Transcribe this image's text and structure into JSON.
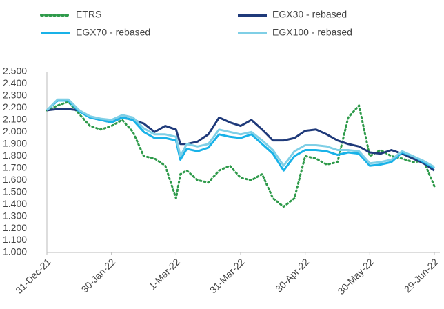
{
  "chart_data": {
    "type": "line",
    "x": [
      "2021-12-31",
      "2022-01-05",
      "2022-01-10",
      "2022-01-15",
      "2022-01-20",
      "2022-01-25",
      "2022-01-30",
      "2022-02-04",
      "2022-02-09",
      "2022-02-14",
      "2022-02-19",
      "2022-02-24",
      "2022-03-01",
      "2022-03-03",
      "2022-03-06",
      "2022-03-11",
      "2022-03-16",
      "2022-03-21",
      "2022-03-26",
      "2022-03-31",
      "2022-04-05",
      "2022-04-10",
      "2022-04-15",
      "2022-04-20",
      "2022-04-25",
      "2022-04-30",
      "2022-05-05",
      "2022-05-10",
      "2022-05-15",
      "2022-05-20",
      "2022-05-25",
      "2022-05-30",
      "2022-06-04",
      "2022-06-09",
      "2022-06-14",
      "2022-06-19",
      "2022-06-24",
      "2022-06-29"
    ],
    "series": [
      {
        "name": "ETRS",
        "color": "#2e9a4a",
        "style": "dotted",
        "values": [
          2.18,
          2.22,
          2.25,
          2.15,
          2.05,
          2.02,
          2.05,
          2.1,
          2.0,
          1.8,
          1.78,
          1.72,
          1.45,
          1.65,
          1.68,
          1.6,
          1.58,
          1.68,
          1.72,
          1.62,
          1.6,
          1.65,
          1.45,
          1.38,
          1.45,
          1.8,
          1.78,
          1.73,
          1.75,
          2.12,
          2.22,
          1.8,
          1.85,
          1.8,
          1.78,
          1.75,
          1.76,
          1.55
        ]
      },
      {
        "name": "EGX30 - rebased",
        "color": "#1f3a7a",
        "style": "solid",
        "values": [
          2.18,
          2.19,
          2.19,
          2.18,
          2.12,
          2.1,
          2.08,
          2.12,
          2.1,
          2.07,
          2.0,
          2.05,
          2.02,
          1.9,
          1.9,
          1.92,
          1.98,
          2.12,
          2.08,
          2.05,
          2.1,
          2.02,
          1.93,
          1.93,
          1.95,
          2.01,
          2.02,
          1.98,
          1.93,
          1.9,
          1.88,
          1.83,
          1.82,
          1.85,
          1.82,
          1.78,
          1.74,
          1.68
        ]
      },
      {
        "name": "EGX70 - rebased",
        "color": "#19b2e8",
        "style": "solid",
        "values": [
          2.18,
          2.26,
          2.26,
          2.17,
          2.12,
          2.1,
          2.08,
          2.12,
          2.1,
          2.0,
          1.95,
          1.95,
          1.93,
          1.77,
          1.86,
          1.84,
          1.87,
          1.98,
          1.96,
          1.95,
          1.98,
          1.9,
          1.82,
          1.68,
          1.8,
          1.85,
          1.85,
          1.84,
          1.81,
          1.83,
          1.82,
          1.72,
          1.73,
          1.75,
          1.83,
          1.8,
          1.75,
          1.7
        ]
      },
      {
        "name": "EGX100 - rebased",
        "color": "#7fcfe6",
        "style": "solid",
        "values": [
          2.18,
          2.27,
          2.27,
          2.18,
          2.13,
          2.11,
          2.1,
          2.14,
          2.12,
          2.03,
          1.98,
          1.98,
          1.96,
          1.8,
          1.9,
          1.88,
          1.9,
          2.02,
          2.0,
          1.98,
          2.0,
          1.93,
          1.85,
          1.72,
          1.84,
          1.89,
          1.89,
          1.88,
          1.85,
          1.85,
          1.84,
          1.74,
          1.75,
          1.77,
          1.84,
          1.8,
          1.76,
          1.71
        ]
      }
    ],
    "xlim": [
      "2021-12-31",
      "2022-06-29"
    ],
    "xticks": [
      {
        "value": "2021-12-31",
        "label": "31-Dec-21"
      },
      {
        "value": "2022-01-30",
        "label": "30-Jan-22"
      },
      {
        "value": "2022-03-01",
        "label": "1-Mar-22"
      },
      {
        "value": "2022-03-31",
        "label": "31-Mar-22"
      },
      {
        "value": "2022-04-30",
        "label": "30-Apr-22"
      },
      {
        "value": "2022-05-30",
        "label": "30-May-22"
      },
      {
        "value": "2022-06-29",
        "label": "29-Jun-22"
      }
    ],
    "ylim": [
      1.0,
      2.5
    ],
    "yticks": [
      {
        "value": 1.0,
        "label": "1.000"
      },
      {
        "value": 1.1,
        "label": "1.100"
      },
      {
        "value": 1.2,
        "label": "1.200"
      },
      {
        "value": 1.3,
        "label": "1.300"
      },
      {
        "value": 1.4,
        "label": "1.400"
      },
      {
        "value": 1.5,
        "label": "1.500"
      },
      {
        "value": 1.6,
        "label": "1.600"
      },
      {
        "value": 1.7,
        "label": "1.700"
      },
      {
        "value": 1.8,
        "label": "1.800"
      },
      {
        "value": 1.9,
        "label": "1.900"
      },
      {
        "value": 2.0,
        "label": "2.000"
      },
      {
        "value": 2.1,
        "label": "2.100"
      },
      {
        "value": 2.2,
        "label": "2.200"
      },
      {
        "value": 2.3,
        "label": "2.300"
      },
      {
        "value": 2.4,
        "label": "2.400"
      },
      {
        "value": 2.5,
        "label": "2.500"
      }
    ],
    "grid": false,
    "legend": "top"
  }
}
